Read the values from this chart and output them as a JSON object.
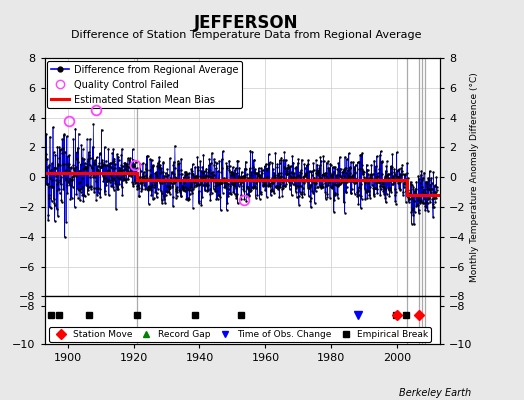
{
  "title": "JEFFERSON",
  "subtitle": "Difference of Station Temperature Data from Regional Average",
  "ylabel_right": "Monthly Temperature Anomaly Difference (°C)",
  "xlim": [
    1893,
    2013
  ],
  "ylim_main": [
    -8,
    8
  ],
  "ylim_full": [
    -10,
    8
  ],
  "yticks_main": [
    -8,
    -6,
    -4,
    -2,
    0,
    2,
    4,
    6,
    8
  ],
  "xticks": [
    1900,
    1920,
    1940,
    1960,
    1980,
    2000
  ],
  "fig_bg_color": "#e8e8e8",
  "plot_bg_color": "#ffffff",
  "grid_color": "#cccccc",
  "data_line_color": "#0000cc",
  "data_point_color": "#000000",
  "bias_line_color": "#ff0000",
  "qc_fail_color": "#ff44ff",
  "vertical_bar_color": "#aaaaaa",
  "marker_y": -9.0,
  "station_move_times": [
    2000.0,
    2006.5
  ],
  "empirical_break_times": [
    1895.0,
    1897.5,
    1906.5,
    1921.0,
    1938.5,
    1952.5,
    1999.5,
    2002.5
  ],
  "time_of_obs_change_times": [
    1988.0
  ],
  "record_gap_times": [],
  "vertical_line_times": [
    1921.0,
    2003.0,
    2006.5,
    2007.5,
    2008.5
  ],
  "qc_failed_years": [
    1900.5,
    1908.5,
    1920.5,
    1953.5
  ],
  "qc_failed_vals": [
    3.8,
    4.5,
    0.8,
    -1.5
  ],
  "bias_break_year1": 1921.0,
  "bias_break_year2": 2003.0,
  "bias_level1": 0.3,
  "bias_level2": -0.2,
  "bias_level3": -1.2,
  "seed": 42
}
